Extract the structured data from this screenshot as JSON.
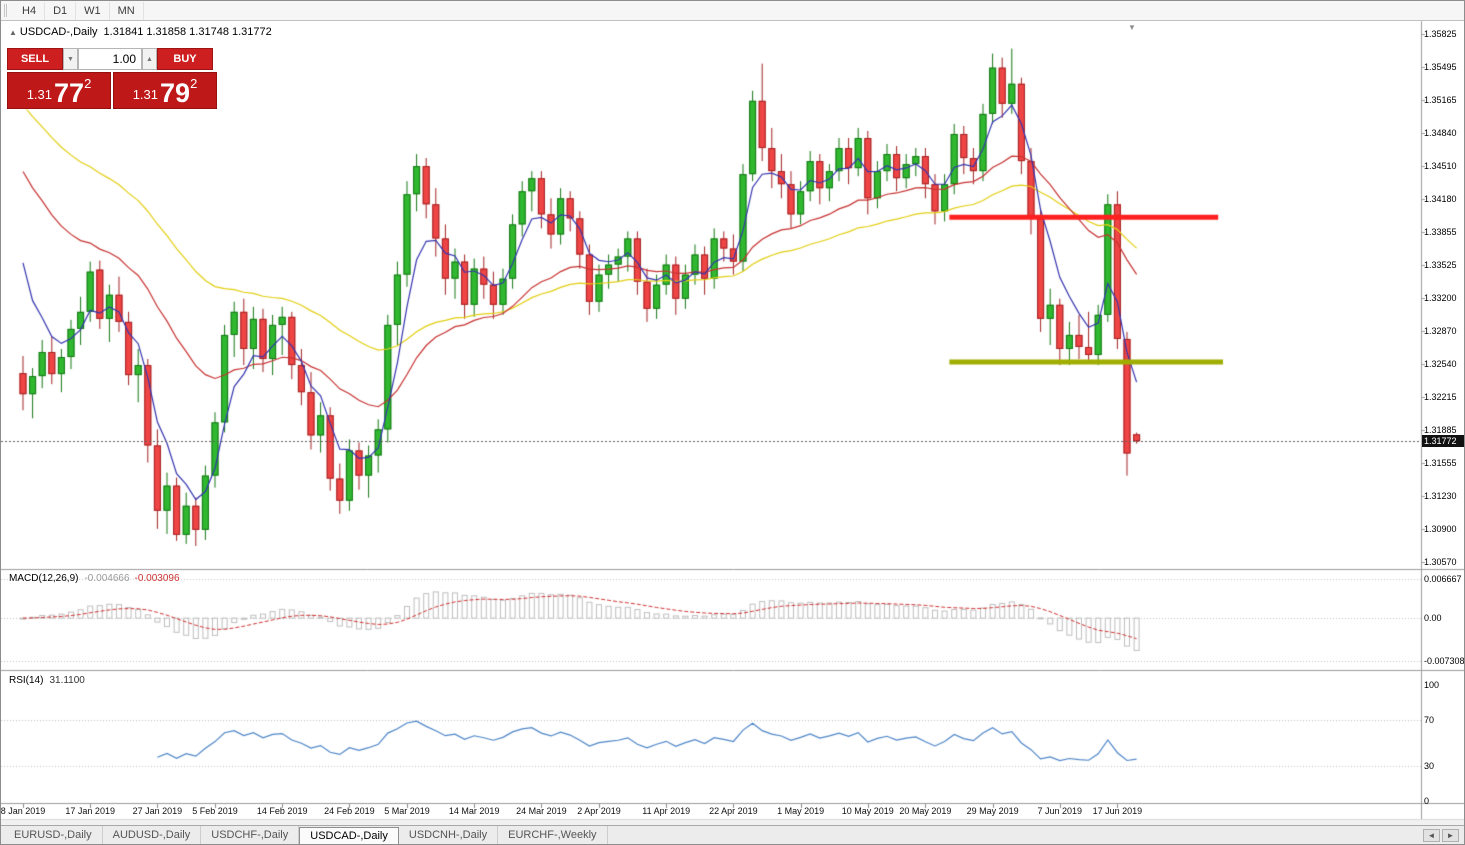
{
  "toolbar": {
    "timeframes": [
      "H4",
      "D1",
      "W1",
      "MN"
    ]
  },
  "chart": {
    "expand_icon": "▲",
    "symbol_title": "USDCAD-,Daily",
    "ohlc": "1.31841 1.31858 1.31748 1.31772",
    "current_price_label": "1.31772",
    "shift_marker": "▼"
  },
  "one_click": {
    "sell_label": "SELL",
    "buy_label": "BUY",
    "volume": "1.00",
    "spinner_down": "▼",
    "spinner_up": "▲",
    "sell_price": {
      "prefix": "1.31",
      "big": "77",
      "sup": "2"
    },
    "buy_price": {
      "prefix": "1.31",
      "big": "79",
      "sup": "2"
    }
  },
  "price_axis": {
    "labels": [
      "1.35825",
      "1.35495",
      "1.35165",
      "1.34840",
      "1.34510",
      "1.34180",
      "1.33855",
      "1.33525",
      "1.33200",
      "1.32870",
      "1.32540",
      "1.32215",
      "1.31885",
      "1.31555",
      "1.31230",
      "1.30900",
      "1.30570"
    ]
  },
  "time_axis": {
    "labels": [
      {
        "i": 0,
        "label": "8 Jan 2019"
      },
      {
        "i": 7,
        "label": "17 Jan 2019"
      },
      {
        "i": 14,
        "label": "27 Jan 2019"
      },
      {
        "i": 20,
        "label": "5 Feb 2019"
      },
      {
        "i": 27,
        "label": "14 Feb 2019"
      },
      {
        "i": 34,
        "label": "24 Feb 2019"
      },
      {
        "i": 40,
        "label": "5 Mar 2019"
      },
      {
        "i": 47,
        "label": "14 Mar 2019"
      },
      {
        "i": 54,
        "label": "24 Mar 2019"
      },
      {
        "i": 60,
        "label": "2 Apr 2019"
      },
      {
        "i": 67,
        "label": "11 Apr 2019"
      },
      {
        "i": 74,
        "label": "22 Apr 2019"
      },
      {
        "i": 81,
        "label": "1 May 2019"
      },
      {
        "i": 88,
        "label": "10 May 2019"
      },
      {
        "i": 94,
        "label": "20 May 2019"
      },
      {
        "i": 101,
        "label": "29 May 2019"
      },
      {
        "i": 108,
        "label": "7 Jun 2019"
      },
      {
        "i": 114,
        "label": "17 Jun 2019"
      }
    ]
  },
  "macd_panel": {
    "label": "MACD(12,26,9)",
    "value1": "-0.004666",
    "value2": "-0.003096",
    "axis": [
      "0.006667",
      "0.00",
      "-0.007308"
    ]
  },
  "rsi_panel": {
    "label": "RSI(14)",
    "value": "31.1100",
    "axis": [
      "100",
      "70",
      "30",
      "0"
    ]
  },
  "tabs": {
    "items": [
      {
        "label": "EURUSD-,Daily",
        "active": false
      },
      {
        "label": "AUDUSD-,Daily",
        "active": false
      },
      {
        "label": "USDCHF-,Daily",
        "active": false
      },
      {
        "label": "USDCAD-,Daily",
        "active": true
      },
      {
        "label": "USDCNH-,Daily",
        "active": false
      },
      {
        "label": "EURCHF-,Weekly",
        "active": false
      }
    ],
    "scroll_left": "◄",
    "scroll_right": "►"
  },
  "colors": {
    "bull": "#30b830",
    "bull_stroke": "#157815",
    "bear": "#ef4545",
    "bear_stroke": "#a32222",
    "macd_hist": "#bfbfbf",
    "macd_signal": "#d23434",
    "rsi": "#4e86c8",
    "bid_line": "#606060",
    "resistance": "#ff2020",
    "support": "#9fae00",
    "panel_red": "#cd1f1f",
    "price_box_red": "#bf1818"
  },
  "chart_data": {
    "type": "candlestick",
    "title": "USDCAD-,Daily",
    "current_price": 1.31772,
    "price_axis_ticks": [
      1.35825,
      1.35495,
      1.35165,
      1.3484,
      1.3451,
      1.3418,
      1.33855,
      1.33525,
      1.332,
      1.3287,
      1.3254,
      1.32215,
      1.31885,
      1.31555,
      1.3123,
      1.309,
      1.3057
    ],
    "visible_price_range": [
      1.305,
      1.3596
    ],
    "candles": [
      [
        1.3245,
        1.3262,
        1.3208,
        1.3224
      ],
      [
        1.3224,
        1.325,
        1.32,
        1.3242
      ],
      [
        1.3242,
        1.3278,
        1.323,
        1.3266
      ],
      [
        1.3266,
        1.3281,
        1.3234,
        1.3244
      ],
      [
        1.3244,
        1.3269,
        1.3226,
        1.3261
      ],
      [
        1.3261,
        1.3298,
        1.3249,
        1.3289
      ],
      [
        1.3289,
        1.3321,
        1.3273,
        1.3306
      ],
      [
        1.3306,
        1.3356,
        1.3296,
        1.3346
      ],
      [
        1.3348,
        1.3357,
        1.3289,
        1.3299
      ],
      [
        1.3299,
        1.3333,
        1.3276,
        1.3323
      ],
      [
        1.3323,
        1.3341,
        1.3286,
        1.3296
      ],
      [
        1.3296,
        1.3306,
        1.3233,
        1.3243
      ],
      [
        1.3243,
        1.3269,
        1.3216,
        1.3253
      ],
      [
        1.3253,
        1.3259,
        1.3156,
        1.3173
      ],
      [
        1.3173,
        1.3189,
        1.309,
        1.3108
      ],
      [
        1.3108,
        1.3146,
        1.3085,
        1.3133
      ],
      [
        1.3133,
        1.3141,
        1.3078,
        1.3084
      ],
      [
        1.3084,
        1.3126,
        1.3075,
        1.3113
      ],
      [
        1.3113,
        1.3121,
        1.3073,
        1.3089
      ],
      [
        1.3089,
        1.3153,
        1.3079,
        1.3143
      ],
      [
        1.3143,
        1.3206,
        1.3131,
        1.3196
      ],
      [
        1.3196,
        1.3293,
        1.3186,
        1.3283
      ],
      [
        1.3283,
        1.3316,
        1.3261,
        1.3306
      ],
      [
        1.3306,
        1.3319,
        1.3253,
        1.3269
      ],
      [
        1.3269,
        1.3311,
        1.3249,
        1.3299
      ],
      [
        1.3299,
        1.3309,
        1.3246,
        1.3259
      ],
      [
        1.3259,
        1.3303,
        1.3243,
        1.3293
      ],
      [
        1.3293,
        1.3311,
        1.3263,
        1.3301
      ],
      [
        1.3301,
        1.3306,
        1.3239,
        1.3253
      ],
      [
        1.3253,
        1.3269,
        1.3213,
        1.3226
      ],
      [
        1.3226,
        1.3246,
        1.3169,
        1.3183
      ],
      [
        1.3183,
        1.3216,
        1.3166,
        1.3203
      ],
      [
        1.3203,
        1.3211,
        1.3128,
        1.314
      ],
      [
        1.314,
        1.3155,
        1.3105,
        1.3118
      ],
      [
        1.3118,
        1.3179,
        1.3108,
        1.3168
      ],
      [
        1.3168,
        1.3176,
        1.3129,
        1.3143
      ],
      [
        1.3143,
        1.3173,
        1.3121,
        1.3163
      ],
      [
        1.3163,
        1.3199,
        1.3146,
        1.3189
      ],
      [
        1.3189,
        1.3303,
        1.3176,
        1.3293
      ],
      [
        1.3293,
        1.3356,
        1.3273,
        1.3343
      ],
      [
        1.3343,
        1.3436,
        1.3331,
        1.3423
      ],
      [
        1.3423,
        1.3463,
        1.3406,
        1.3451
      ],
      [
        1.3451,
        1.3459,
        1.3399,
        1.3413
      ],
      [
        1.3413,
        1.3429,
        1.3361,
        1.3379
      ],
      [
        1.3379,
        1.3393,
        1.3323,
        1.3339
      ],
      [
        1.3339,
        1.3369,
        1.3319,
        1.3356
      ],
      [
        1.3356,
        1.3363,
        1.3299,
        1.3313
      ],
      [
        1.3313,
        1.3359,
        1.3301,
        1.3349
      ],
      [
        1.3349,
        1.3361,
        1.3319,
        1.3333
      ],
      [
        1.3333,
        1.3346,
        1.3299,
        1.3313
      ],
      [
        1.3313,
        1.3349,
        1.3303,
        1.3339
      ],
      [
        1.3339,
        1.3403,
        1.3329,
        1.3393
      ],
      [
        1.3393,
        1.3436,
        1.3381,
        1.3426
      ],
      [
        1.3426,
        1.3446,
        1.3406,
        1.3439
      ],
      [
        1.3439,
        1.3446,
        1.3389,
        1.3403
      ],
      [
        1.3403,
        1.3419,
        1.3369,
        1.3383
      ],
      [
        1.3383,
        1.3429,
        1.3373,
        1.3419
      ],
      [
        1.3419,
        1.3426,
        1.3386,
        1.3399
      ],
      [
        1.3399,
        1.3406,
        1.3349,
        1.3363
      ],
      [
        1.3363,
        1.3373,
        1.3303,
        1.3316
      ],
      [
        1.3316,
        1.3353,
        1.3306,
        1.3343
      ],
      [
        1.3343,
        1.3363,
        1.3329,
        1.3353
      ],
      [
        1.3353,
        1.3369,
        1.3336,
        1.3361
      ],
      [
        1.3361,
        1.3386,
        1.3346,
        1.3379
      ],
      [
        1.3379,
        1.3386,
        1.3323,
        1.3336
      ],
      [
        1.3336,
        1.3349,
        1.3296,
        1.3309
      ],
      [
        1.3309,
        1.3343,
        1.3299,
        1.3333
      ],
      [
        1.3333,
        1.3363,
        1.3323,
        1.3353
      ],
      [
        1.3353,
        1.3361,
        1.3303,
        1.3319
      ],
      [
        1.3319,
        1.3353,
        1.3309,
        1.3343
      ],
      [
        1.3343,
        1.3373,
        1.3333,
        1.3363
      ],
      [
        1.3363,
        1.3371,
        1.3323,
        1.3339
      ],
      [
        1.3339,
        1.3389,
        1.3329,
        1.3379
      ],
      [
        1.3379,
        1.3386,
        1.3356,
        1.3369
      ],
      [
        1.3369,
        1.3383,
        1.3343,
        1.3356
      ],
      [
        1.3356,
        1.3453,
        1.3346,
        1.3443
      ],
      [
        1.3443,
        1.3526,
        1.3436,
        1.3516
      ],
      [
        1.3516,
        1.3553,
        1.3456,
        1.3469
      ],
      [
        1.3469,
        1.3489,
        1.3429,
        1.3446
      ],
      [
        1.3446,
        1.3463,
        1.3419,
        1.3433
      ],
      [
        1.3433,
        1.3446,
        1.3389,
        1.3403
      ],
      [
        1.3403,
        1.3436,
        1.3393,
        1.3426
      ],
      [
        1.3426,
        1.3466,
        1.3416,
        1.3456
      ],
      [
        1.3456,
        1.3463,
        1.3413,
        1.3429
      ],
      [
        1.3429,
        1.3453,
        1.3416,
        1.3446
      ],
      [
        1.3446,
        1.3479,
        1.3436,
        1.3469
      ],
      [
        1.3469,
        1.3479,
        1.3433,
        1.3449
      ],
      [
        1.3449,
        1.3489,
        1.3441,
        1.3479
      ],
      [
        1.3479,
        1.3486,
        1.3403,
        1.3419
      ],
      [
        1.3419,
        1.3456,
        1.3409,
        1.3446
      ],
      [
        1.3446,
        1.3473,
        1.3436,
        1.3463
      ],
      [
        1.3463,
        1.3471,
        1.3426,
        1.3439
      ],
      [
        1.3439,
        1.3463,
        1.3429,
        1.3453
      ],
      [
        1.3453,
        1.3469,
        1.3441,
        1.3461
      ],
      [
        1.3461,
        1.3469,
        1.3419,
        1.3433
      ],
      [
        1.3433,
        1.3443,
        1.3393,
        1.3406
      ],
      [
        1.3406,
        1.3443,
        1.3396,
        1.3433
      ],
      [
        1.3433,
        1.3493,
        1.3423,
        1.3483
      ],
      [
        1.3483,
        1.3491,
        1.3443,
        1.3459
      ],
      [
        1.3459,
        1.3469,
        1.3433,
        1.3446
      ],
      [
        1.3446,
        1.3513,
        1.3436,
        1.3503
      ],
      [
        1.3503,
        1.3563,
        1.3493,
        1.3549
      ],
      [
        1.3549,
        1.3559,
        1.3499,
        1.3513
      ],
      [
        1.3513,
        1.3568,
        1.3503,
        1.3533
      ],
      [
        1.3533,
        1.3539,
        1.3443,
        1.3456
      ],
      [
        1.3456,
        1.3469,
        1.3383,
        1.3399
      ],
      [
        1.3399,
        1.3409,
        1.3286,
        1.3299
      ],
      [
        1.3299,
        1.3329,
        1.3273,
        1.3313
      ],
      [
        1.3313,
        1.3319,
        1.3253,
        1.3269
      ],
      [
        1.3269,
        1.3296,
        1.3253,
        1.3283
      ],
      [
        1.3283,
        1.3303,
        1.3259,
        1.3271
      ],
      [
        1.3271,
        1.3306,
        1.3256,
        1.3263
      ],
      [
        1.3263,
        1.3313,
        1.3253,
        1.3303
      ],
      [
        1.3303,
        1.3423,
        1.3296,
        1.3413
      ],
      [
        1.3413,
        1.3426,
        1.3269,
        1.3279
      ],
      [
        1.3279,
        1.3286,
        1.3143,
        1.3165
      ],
      [
        1.31841,
        1.31858,
        1.31748,
        1.31772
      ]
    ],
    "moving_averages": [
      {
        "period": 45,
        "seed": 1.3525,
        "color": "#e3cf12"
      },
      {
        "period": 24,
        "seed": 1.3465,
        "color": "#c83232"
      },
      {
        "period": 5,
        "seed": 1.342,
        "color": "#3535b0"
      }
    ],
    "horizontal_lines": [
      {
        "price": 1.34,
        "color": "#ff2020",
        "thickness": 5,
        "from_bar": 96.5,
        "to_bar": 124.5,
        "role": "resistance"
      },
      {
        "price": 1.3256,
        "color": "#9fae00",
        "thickness": 5,
        "from_bar": 96.5,
        "to_bar": 125.0,
        "role": "support"
      }
    ],
    "macd": {
      "params": [
        12,
        26,
        9
      ],
      "current": -0.004666,
      "signal_current": -0.003096,
      "axis": [
        0.006667,
        0,
        -0.007308
      ]
    },
    "rsi": {
      "period": 14,
      "current": 31.11,
      "levels": [
        70,
        30
      ],
      "range": [
        0,
        100
      ]
    }
  }
}
